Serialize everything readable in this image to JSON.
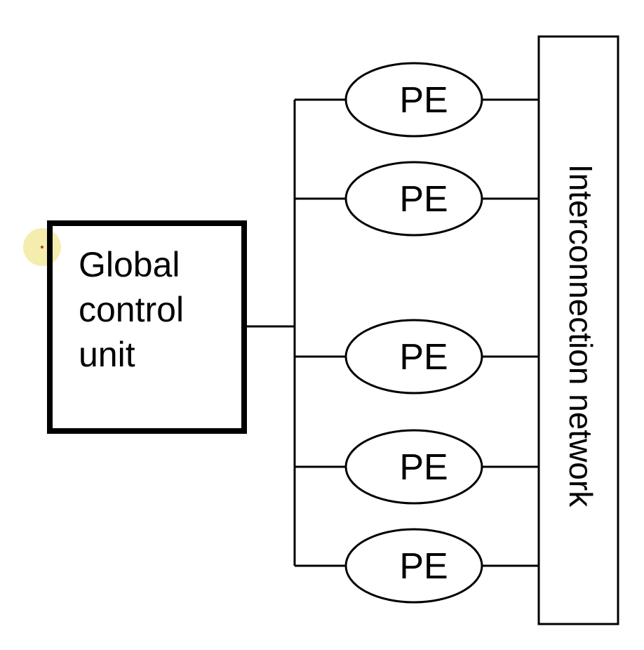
{
  "diagram": {
    "control_unit": {
      "lines": [
        "Global",
        "control",
        "unit"
      ]
    },
    "processing_elements": [
      {
        "label": "PE"
      },
      {
        "label": "PE"
      },
      {
        "label": "PE"
      },
      {
        "label": "PE"
      },
      {
        "label": "PE"
      }
    ],
    "network": {
      "label": "Interconnection network"
    },
    "colors": {
      "stroke": "#000000",
      "background": "#ffffff",
      "cursor_highlight": "#f3eaa0",
      "cursor_dot": "#c0392b"
    }
  }
}
